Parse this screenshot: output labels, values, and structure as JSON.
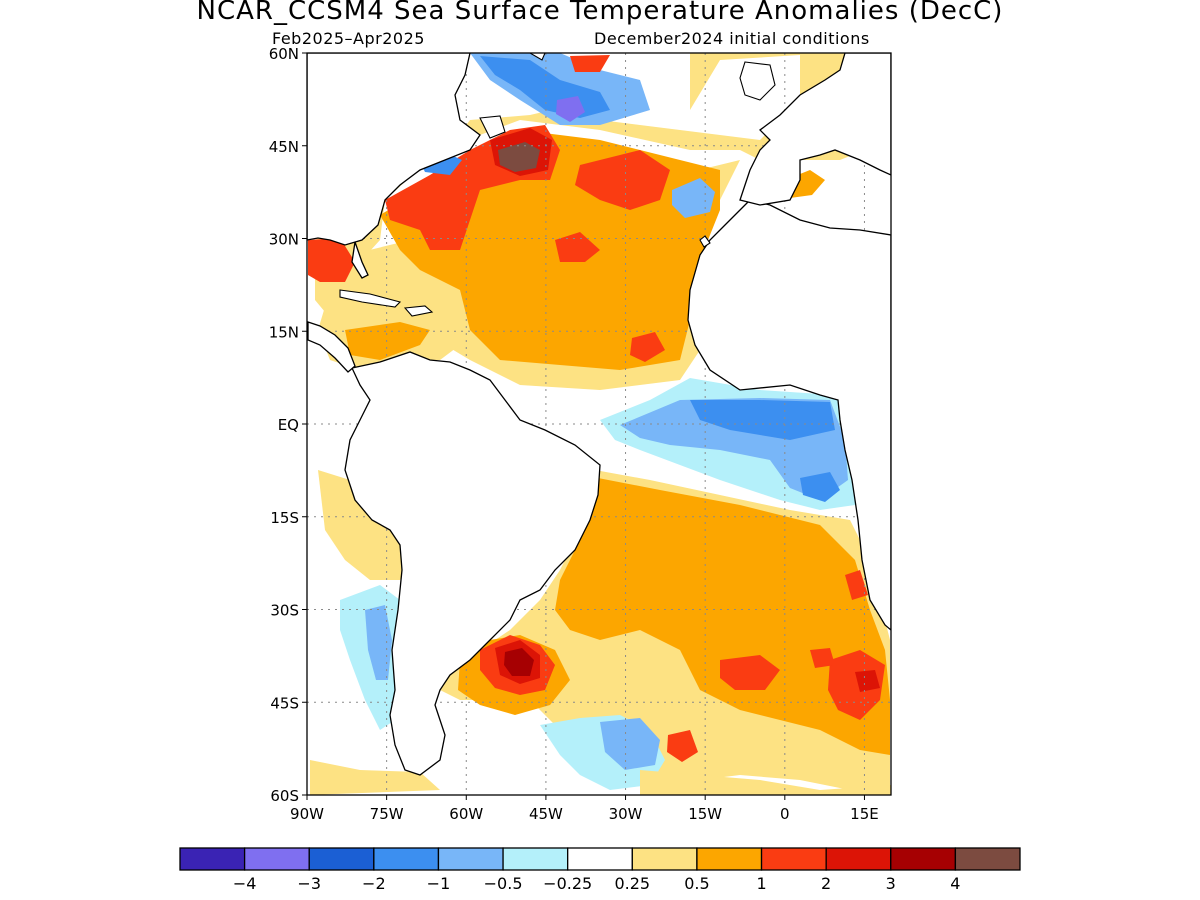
{
  "header": {
    "title": "NCAR_CCSM4 Sea Surface Temperature Anomalies (DecC)",
    "period": "Feb2025–Apr2025",
    "initial_conditions": "December2024 initial conditions"
  },
  "map": {
    "lon_range": [
      -90,
      20
    ],
    "lat_range": [
      -60,
      60
    ],
    "lat_ticks": [
      {
        "value": 60,
        "label": "60N"
      },
      {
        "value": 45,
        "label": "45N"
      },
      {
        "value": 30,
        "label": "30N"
      },
      {
        "value": 15,
        "label": "15N"
      },
      {
        "value": 0,
        "label": "EQ"
      },
      {
        "value": -15,
        "label": "15S"
      },
      {
        "value": -30,
        "label": "30S"
      },
      {
        "value": -45,
        "label": "45S"
      },
      {
        "value": -60,
        "label": "60S"
      }
    ],
    "lon_ticks": [
      {
        "value": -90,
        "label": "90W"
      },
      {
        "value": -75,
        "label": "75W"
      },
      {
        "value": -60,
        "label": "60W"
      },
      {
        "value": -45,
        "label": "45W"
      },
      {
        "value": -30,
        "label": "30W"
      },
      {
        "value": -15,
        "label": "15W"
      },
      {
        "value": 0,
        "label": "0"
      },
      {
        "value": 15,
        "label": "15E"
      }
    ],
    "grid": true
  },
  "colorbar": {
    "colors": [
      "#3a23b4",
      "#7f6ff0",
      "#1b5fd4",
      "#3c8ff0",
      "#78b6f8",
      "#b4f0fa",
      "#ffffff",
      "#fde283",
      "#fca600",
      "#fa3c12",
      "#dc1406",
      "#a60002",
      "#7c4b40"
    ],
    "labels": [
      "−4",
      "−3",
      "−2",
      "−1",
      "−0.5",
      "−0.25",
      "0.25",
      "0.5",
      "1",
      "2",
      "3",
      "4"
    ]
  }
}
